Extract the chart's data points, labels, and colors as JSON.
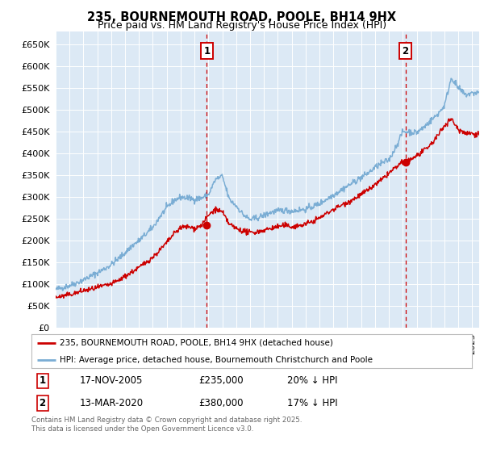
{
  "title": "235, BOURNEMOUTH ROAD, POOLE, BH14 9HX",
  "subtitle": "Price paid vs. HM Land Registry's House Price Index (HPI)",
  "background_color": "#dce9f5",
  "outer_bg_color": "#ffffff",
  "grid_color": "#ffffff",
  "red_line_color": "#cc0000",
  "blue_line_color": "#7aadd4",
  "dashed_line_color": "#cc0000",
  "marker1_x": 2005.88,
  "marker2_x": 2020.19,
  "marker1_y_red": 235000,
  "marker2_y_red": 380000,
  "legend_label_red": "235, BOURNEMOUTH ROAD, POOLE, BH14 9HX (detached house)",
  "legend_label_blue": "HPI: Average price, detached house, Bournemouth Christchurch and Poole",
  "table_row1": [
    "1",
    "17-NOV-2005",
    "£235,000",
    "20% ↓ HPI"
  ],
  "table_row2": [
    "2",
    "13-MAR-2020",
    "£380,000",
    "17% ↓ HPI"
  ],
  "footer": "Contains HM Land Registry data © Crown copyright and database right 2025.\nThis data is licensed under the Open Government Licence v3.0.",
  "ylim": [
    0,
    680000
  ],
  "yticks": [
    0,
    50000,
    100000,
    150000,
    200000,
    250000,
    300000,
    350000,
    400000,
    450000,
    500000,
    550000,
    600000,
    650000
  ],
  "xmin": 1995,
  "xmax": 2025.5,
  "blue_years": [
    1995.0,
    1995.5,
    1996.0,
    1996.5,
    1997.0,
    1997.5,
    1998.0,
    1998.5,
    1999.0,
    1999.5,
    2000.0,
    2000.5,
    2001.0,
    2001.5,
    2002.0,
    2002.5,
    2003.0,
    2003.5,
    2004.0,
    2004.5,
    2005.0,
    2005.5,
    2006.0,
    2006.5,
    2007.0,
    2007.5,
    2008.0,
    2008.5,
    2009.0,
    2009.5,
    2010.0,
    2010.5,
    2011.0,
    2011.5,
    2012.0,
    2012.5,
    2013.0,
    2013.5,
    2014.0,
    2014.5,
    2015.0,
    2015.5,
    2016.0,
    2016.5,
    2017.0,
    2017.5,
    2018.0,
    2018.5,
    2019.0,
    2019.5,
    2020.0,
    2020.5,
    2021.0,
    2021.5,
    2022.0,
    2022.5,
    2023.0,
    2023.5,
    2024.0,
    2024.5,
    2025.3
  ],
  "blue_vals": [
    88000,
    92000,
    97000,
    103000,
    110000,
    118000,
    126000,
    135000,
    145000,
    158000,
    172000,
    188000,
    200000,
    215000,
    230000,
    255000,
    275000,
    292000,
    300000,
    298000,
    295000,
    298000,
    305000,
    340000,
    348000,
    295000,
    280000,
    260000,
    248000,
    252000,
    258000,
    265000,
    268000,
    270000,
    268000,
    270000,
    272000,
    278000,
    285000,
    295000,
    305000,
    315000,
    325000,
    335000,
    345000,
    355000,
    368000,
    378000,
    385000,
    415000,
    450000,
    450000,
    448000,
    460000,
    475000,
    490000,
    510000,
    575000,
    550000,
    535000,
    540000
  ],
  "red_years": [
    1995.0,
    1995.5,
    1996.0,
    1996.5,
    1997.0,
    1997.5,
    1998.0,
    1998.5,
    1999.0,
    1999.5,
    2000.0,
    2000.5,
    2001.0,
    2001.5,
    2002.0,
    2002.5,
    2003.0,
    2003.5,
    2004.0,
    2004.5,
    2005.0,
    2005.5,
    2006.0,
    2006.5,
    2007.0,
    2007.5,
    2008.0,
    2008.5,
    2009.0,
    2009.5,
    2010.0,
    2010.5,
    2011.0,
    2011.5,
    2012.0,
    2012.5,
    2013.0,
    2013.5,
    2014.0,
    2014.5,
    2015.0,
    2015.5,
    2016.0,
    2016.5,
    2017.0,
    2017.5,
    2018.0,
    2018.5,
    2019.0,
    2019.5,
    2020.0,
    2020.5,
    2021.0,
    2021.5,
    2022.0,
    2022.5,
    2023.0,
    2023.5,
    2024.0,
    2024.5,
    2025.3
  ],
  "red_vals": [
    70000,
    72000,
    76000,
    80000,
    85000,
    88000,
    92000,
    96000,
    100000,
    108000,
    118000,
    128000,
    138000,
    150000,
    162000,
    178000,
    195000,
    215000,
    230000,
    232000,
    228000,
    235000,
    258000,
    272000,
    265000,
    238000,
    228000,
    222000,
    218000,
    220000,
    224000,
    228000,
    232000,
    235000,
    232000,
    234000,
    238000,
    244000,
    252000,
    262000,
    272000,
    280000,
    288000,
    296000,
    306000,
    316000,
    328000,
    340000,
    355000,
    368000,
    380000,
    385000,
    395000,
    405000,
    420000,
    440000,
    465000,
    480000,
    455000,
    448000,
    445000
  ]
}
